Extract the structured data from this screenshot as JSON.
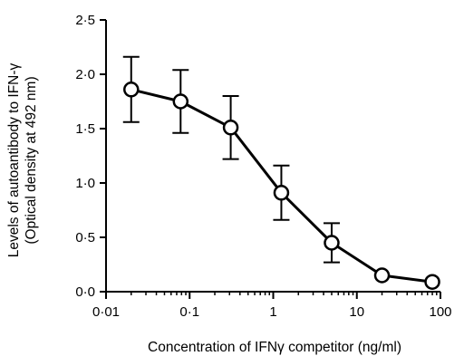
{
  "chart_data": {
    "type": "line",
    "title": "",
    "xlabel": "Concentration of  IFNγ competitor (ng/ml)",
    "ylabel_lines": [
      "Levels of autoantibody to IFN-γ",
      "(Optical density at 492 nm)"
    ],
    "x_scale": "log",
    "xlim": [
      0.01,
      100
    ],
    "ylim": [
      0,
      2.5
    ],
    "x_ticks": [
      {
        "value": 0.01,
        "label": "0·01"
      },
      {
        "value": 0.1,
        "label": "0·1"
      },
      {
        "value": 1,
        "label": "1"
      },
      {
        "value": 10,
        "label": "10"
      },
      {
        "value": 100,
        "label": "100"
      }
    ],
    "y_ticks": [
      {
        "value": 0,
        "label": "0·0"
      },
      {
        "value": 0.5,
        "label": "0·5"
      },
      {
        "value": 1.0,
        "label": "1·0"
      },
      {
        "value": 1.5,
        "label": "1·5"
      },
      {
        "value": 2.0,
        "label": "2·0"
      },
      {
        "value": 2.5,
        "label": "2·5"
      }
    ],
    "series": [
      {
        "x": [
          0.02,
          0.078,
          0.31,
          1.25,
          5,
          20,
          80
        ],
        "y": [
          1.86,
          1.75,
          1.51,
          0.91,
          0.45,
          0.15,
          0.09
        ],
        "err": [
          0.3,
          0.29,
          0.29,
          0.25,
          0.18,
          0,
          0
        ]
      }
    ],
    "grid": false,
    "marker": "open-circle"
  }
}
